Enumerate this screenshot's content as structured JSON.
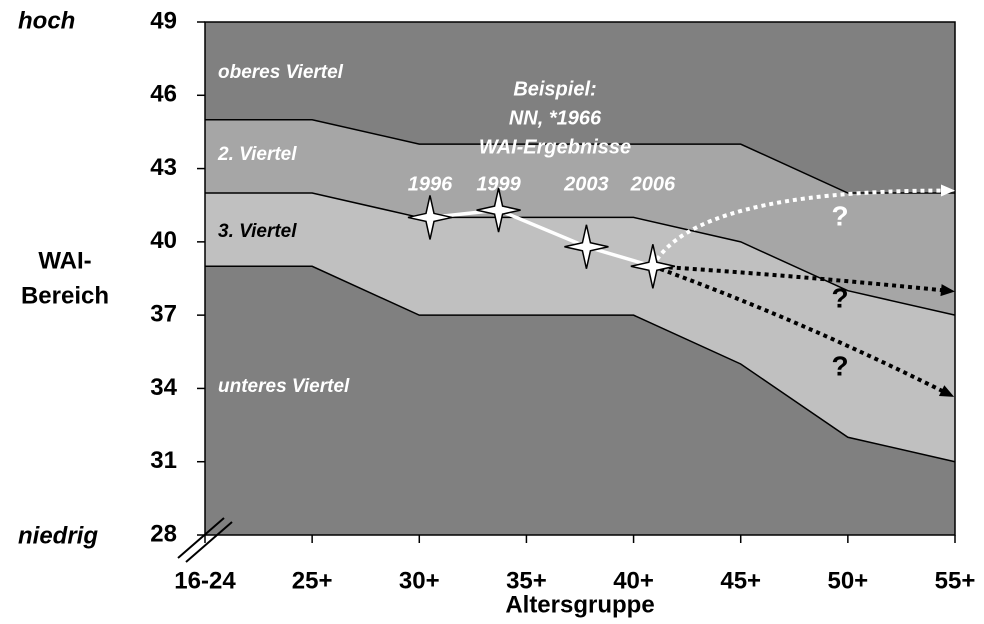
{
  "chart_data": {
    "type": "area",
    "y_label_top": "hoch",
    "y_label_bottom": "niedrig",
    "y_label": [
      "WAI-",
      "Bereich"
    ],
    "x_label": "Altersgruppe",
    "x": [
      20,
      25,
      30,
      35,
      40,
      45,
      50,
      55
    ],
    "xlim": [
      20,
      55
    ],
    "xticks": [
      {
        "value": 20,
        "label": "16-24"
      },
      {
        "value": 25,
        "label": "25+"
      },
      {
        "value": 30,
        "label": "30+"
      },
      {
        "value": 35,
        "label": "35+"
      },
      {
        "value": 40,
        "label": "40+"
      },
      {
        "value": 45,
        "label": "45+"
      },
      {
        "value": 50,
        "label": "50+"
      },
      {
        "value": 55,
        "label": "55+"
      }
    ],
    "ylim": [
      28,
      49
    ],
    "yticks": [
      28,
      31,
      34,
      37,
      40,
      43,
      46,
      49
    ],
    "background": {
      "name": "oberes Viertel",
      "color": "#808080"
    },
    "series": [
      {
        "name": "2. Viertel",
        "color": "#a6a6a6",
        "values": [
          45,
          45,
          44,
          44,
          44,
          44,
          42,
          42
        ]
      },
      {
        "name": "3. Viertel",
        "color": "#c0c0c0",
        "values": [
          42,
          42,
          41,
          41,
          41,
          40,
          38,
          37
        ]
      },
      {
        "name": "unteres Viertel",
        "color": "#808080",
        "values": [
          39,
          39,
          37,
          37,
          37,
          35,
          32,
          31
        ]
      }
    ],
    "example": {
      "title": [
        "Beispiel:",
        "NN, *1966",
        "WAI-Ergebnisse"
      ],
      "labels": [
        "1996",
        "1999",
        "2003",
        "2006"
      ],
      "x": [
        30.5,
        33.7,
        37.8,
        40.9
      ],
      "values": [
        41,
        41.3,
        39.8,
        39
      ]
    },
    "projections": [
      {
        "label": "?",
        "color": "#ffffff",
        "x": 55,
        "value": 42.1
      },
      {
        "label": "?",
        "color": "#000000",
        "x": 55,
        "value": 38
      },
      {
        "label": "?",
        "color": "#000000",
        "x": 55,
        "value": 33.8
      }
    ]
  }
}
